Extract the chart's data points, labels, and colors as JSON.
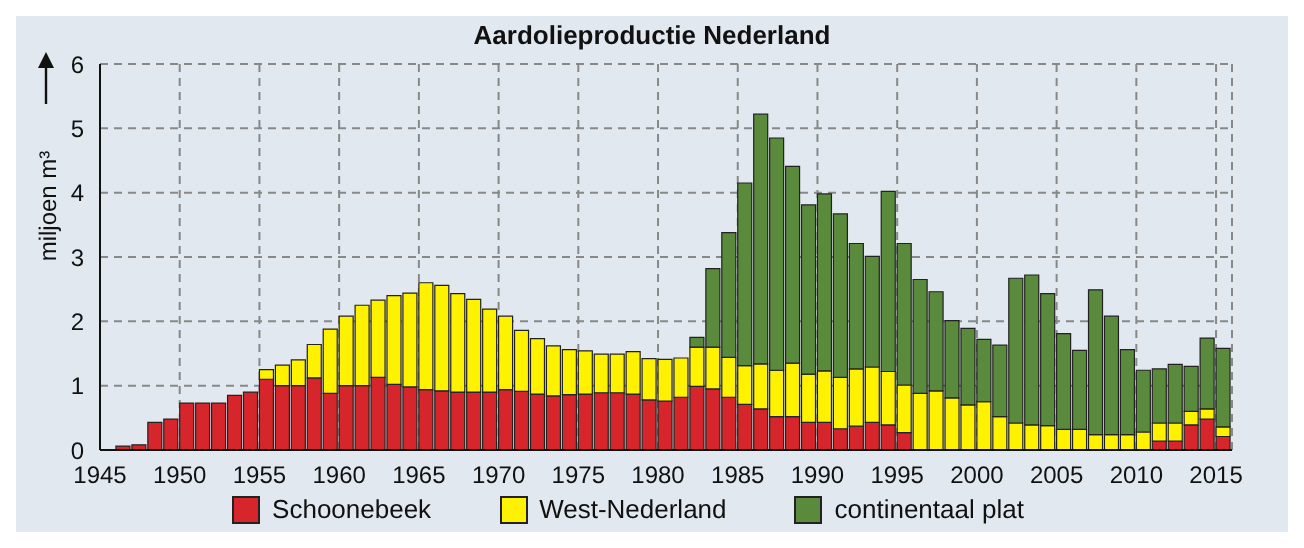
{
  "chart_data": {
    "type": "bar",
    "title": "Aardolieproductie Nederland",
    "ylabel": "miljoen m³",
    "stacked": true,
    "grid": true,
    "legend": "bottom",
    "xlim": [
      1945,
      2016
    ],
    "xticks": [
      1945,
      1950,
      1955,
      1960,
      1965,
      1970,
      1975,
      1980,
      1985,
      1990,
      1995,
      2000,
      2005,
      2010,
      2015
    ],
    "ylim": [
      0,
      6
    ],
    "yticks": [
      0,
      1,
      2,
      3,
      4,
      5,
      6
    ],
    "x": [
      1946.5,
      1947.5,
      1948.5,
      1949.5,
      1950.5,
      1951.5,
      1952.5,
      1953.5,
      1954.5,
      1955.5,
      1956.5,
      1957.5,
      1958.5,
      1959.5,
      1960.5,
      1961.5,
      1962.5,
      1963.5,
      1964.5,
      1965.5,
      1966.5,
      1967.5,
      1968.5,
      1969.5,
      1970.5,
      1971.5,
      1972.5,
      1973.5,
      1974.5,
      1975.5,
      1976.5,
      1977.5,
      1978.5,
      1979.5,
      1980.5,
      1981.5,
      1982.5,
      1983.5,
      1984.5,
      1985.5,
      1986.5,
      1987.5,
      1988.5,
      1989.5,
      1990.5,
      1991.5,
      1992.5,
      1993.5,
      1994.5,
      1995.5,
      1996.5,
      1997.5,
      1998.5,
      1999.5,
      2000.5,
      2001.5,
      2002.5,
      2003.5,
      2004.5,
      2005.5,
      2006.5,
      2007.5,
      2008.5,
      2009.5,
      2010.5,
      2011.5,
      2012.5,
      2013.5,
      2014.5,
      2015.5
    ],
    "series": [
      {
        "name": "Schoonebeek",
        "color": "#d7262b",
        "values": [
          0.06,
          0.08,
          0.43,
          0.48,
          0.73,
          0.73,
          0.73,
          0.85,
          0.9,
          1.1,
          1.0,
          1.0,
          1.12,
          0.88,
          1.0,
          1.0,
          1.13,
          1.02,
          0.98,
          0.94,
          0.92,
          0.9,
          0.9,
          0.9,
          0.94,
          0.91,
          0.87,
          0.84,
          0.86,
          0.87,
          0.89,
          0.89,
          0.87,
          0.78,
          0.76,
          0.82,
          0.99,
          0.95,
          0.82,
          0.71,
          0.64,
          0.52,
          0.52,
          0.43,
          0.43,
          0.33,
          0.37,
          0.43,
          0.39,
          0.27,
          null,
          null,
          null,
          null,
          null,
          null,
          null,
          null,
          null,
          null,
          null,
          null,
          null,
          null,
          null,
          0.14,
          0.14,
          0.39,
          0.48,
          0.21
        ]
      },
      {
        "name": "West-Nederland",
        "color": "#fff200",
        "values": [
          null,
          null,
          null,
          null,
          null,
          null,
          null,
          null,
          null,
          0.15,
          0.32,
          0.4,
          0.52,
          1.0,
          1.08,
          1.25,
          1.2,
          1.38,
          1.46,
          1.66,
          1.64,
          1.53,
          1.44,
          1.29,
          1.14,
          0.95,
          0.86,
          0.78,
          0.7,
          0.67,
          0.6,
          0.6,
          0.66,
          0.64,
          0.65,
          0.61,
          0.61,
          0.65,
          0.62,
          0.6,
          0.7,
          0.72,
          0.83,
          0.75,
          0.8,
          0.8,
          0.89,
          0.86,
          0.83,
          0.74,
          0.88,
          0.92,
          0.81,
          0.7,
          0.75,
          0.52,
          0.42,
          0.39,
          0.38,
          0.32,
          0.32,
          0.24,
          0.24,
          0.24,
          0.28,
          0.28,
          0.28,
          0.21,
          0.16,
          0.15
        ]
      },
      {
        "name": "continentaal plat",
        "color": "#5a8a3c",
        "values": [
          null,
          null,
          null,
          null,
          null,
          null,
          null,
          null,
          null,
          null,
          null,
          null,
          null,
          null,
          null,
          null,
          null,
          null,
          null,
          null,
          null,
          null,
          null,
          null,
          null,
          null,
          null,
          null,
          null,
          null,
          null,
          null,
          null,
          null,
          null,
          null,
          0.15,
          1.22,
          1.94,
          2.84,
          3.88,
          3.61,
          3.06,
          2.63,
          2.75,
          2.54,
          1.95,
          1.72,
          2.8,
          2.2,
          1.77,
          1.54,
          1.2,
          1.19,
          0.97,
          1.11,
          2.25,
          2.33,
          2.05,
          1.49,
          1.23,
          2.25,
          1.84,
          1.32,
          0.96,
          0.84,
          0.91,
          0.7,
          1.1,
          1.22
        ]
      }
    ]
  }
}
